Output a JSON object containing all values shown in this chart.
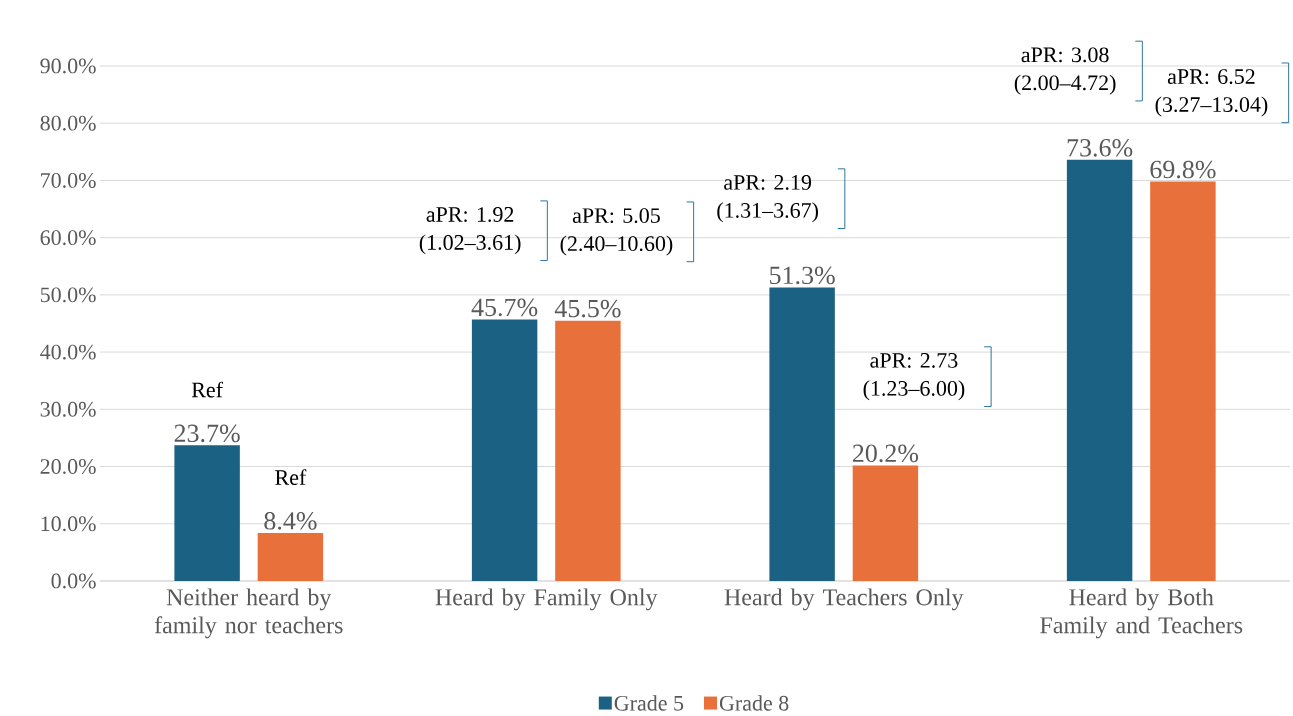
{
  "chart_data": {
    "type": "bar",
    "categories": [
      "Neither heard by family nor teachers",
      "Heard by Family Only",
      "Heard by Teachers Only",
      "Heard by Both Family and Teachers"
    ],
    "series": [
      {
        "name": "Grade 5",
        "color": "#1b6183",
        "values": [
          23.7,
          45.7,
          51.3,
          73.6
        ],
        "value_labels": [
          "23.7%",
          "45.7%",
          "51.3%",
          "73.6%"
        ]
      },
      {
        "name": "Grade 8",
        "color": "#e8703a",
        "values": [
          8.4,
          45.5,
          20.2,
          69.8
        ],
        "value_labels": [
          "8.4%",
          "45.5%",
          "20.2%",
          "69.8%"
        ]
      }
    ],
    "ylim": [
      0,
      90
    ],
    "yticks": [
      {
        "value": 0,
        "label": "0.0%"
      },
      {
        "value": 10,
        "label": "10.0%"
      },
      {
        "value": 20,
        "label": "20.0%"
      },
      {
        "value": 30,
        "label": "30.0%"
      },
      {
        "value": 40,
        "label": "40.0%"
      },
      {
        "value": 50,
        "label": "50.0%"
      },
      {
        "value": 60,
        "label": "60.0%"
      },
      {
        "value": 70,
        "label": "70.0%"
      },
      {
        "value": 80,
        "label": "80.0%"
      },
      {
        "value": 90,
        "label": "90.0%"
      }
    ],
    "grid": "y",
    "legend": "bottom",
    "annotations": [
      "Ref",
      "Ref",
      "aPR: 1.92 (1.02–3.61)",
      "aPR: 5.05 (2.40–10.60)",
      "aPR: 2.19 (1.31–3.67)",
      "aPR: 2.73 (1.23–6.00)",
      "aPR: 3.08 (2.00–4.72)",
      "aPR: 6.52 (3.27–13.04)"
    ]
  }
}
